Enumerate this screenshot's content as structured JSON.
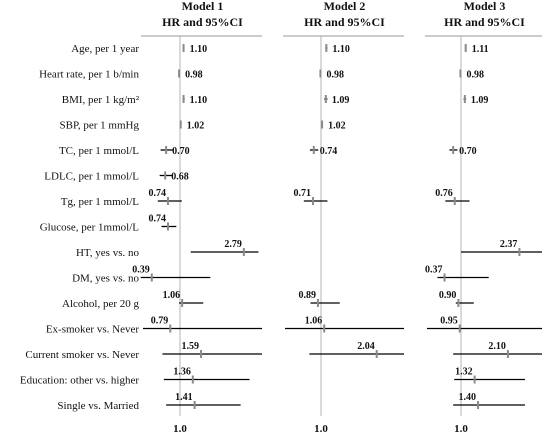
{
  "chart_data": {
    "type": "forest",
    "reference_value": 1.0,
    "panels": [
      {
        "title_line1": "Model 1",
        "title_line2": "HR and 95%CI",
        "xlim": [
          0.2,
          3.3
        ],
        "axis_tick_label": "1.0",
        "rows": [
          {
            "label": "Age, per 1 year",
            "hr": 1.1,
            "hr_text": "1.10",
            "ci": [
              1.08,
              1.12
            ]
          },
          {
            "label": "Heart rate, per 1 b/min",
            "hr": 0.98,
            "hr_text": "0.98",
            "ci": [
              0.97,
              0.99
            ]
          },
          {
            "label": "BMI, per 1 kg/m²",
            "hr": 1.1,
            "hr_text": "1.10",
            "ci": [
              1.07,
              1.13
            ]
          },
          {
            "label": "SBP, per 1 mmHg",
            "hr": 1.02,
            "hr_text": "1.02",
            "ci": [
              1.01,
              1.03
            ]
          },
          {
            "label": "TC, per 1 mmol/L",
            "hr": 0.7,
            "hr_text": "0.70",
            "ci": [
              0.58,
              0.85
            ]
          },
          {
            "label": "LDLC, per 1 mmol/L",
            "hr": 0.68,
            "hr_text": "0.68",
            "ci": [
              0.56,
              0.83
            ]
          },
          {
            "label": "Tg, per 1 mmol/L",
            "hr": 0.74,
            "hr_text": "0.74",
            "ci": [
              0.52,
              1.05
            ]
          },
          {
            "label": "Glucose, per 1mmol/L",
            "hr": 0.74,
            "hr_text": "0.74",
            "ci": [
              0.6,
              0.92
            ]
          },
          {
            "label": "HT, yes vs. no",
            "hr": 2.79,
            "hr_text": "2.79",
            "ci": [
              1.3,
              3.2
            ]
          },
          {
            "label": "DM, yes vs. no",
            "hr": 0.39,
            "hr_text": "0.39",
            "ci": [
              0.15,
              1.85
            ]
          },
          {
            "label": "Alcohol, per 20 g",
            "hr": 1.06,
            "hr_text": "1.06",
            "ci": [
              0.98,
              1.65
            ]
          },
          {
            "label": "Ex-smoker vs. Never",
            "hr": 0.79,
            "hr_text": "0.79",
            "ci": [
              0.2,
              3.3
            ]
          },
          {
            "label": "Current smoker vs. Never",
            "hr": 1.59,
            "hr_text": "1.59",
            "ci": [
              0.62,
              3.3
            ]
          },
          {
            "label": "Education: other vs. higher",
            "hr": 1.36,
            "hr_text": "1.36",
            "ci": [
              0.65,
              2.95
            ]
          },
          {
            "label": "Single vs. Married",
            "hr": 1.41,
            "hr_text": "1.41",
            "ci": [
              0.7,
              2.7
            ]
          }
        ]
      },
      {
        "title_line1": "Model 2",
        "title_line2": "HR and 95%CI",
        "xlim": [
          -0.3,
          2.55
        ],
        "axis_tick_label": "1.0",
        "rows": [
          {
            "label": "Age, per 1 year",
            "hr": 1.1,
            "hr_text": "1.10",
            "ci": [
              1.08,
              1.12
            ]
          },
          {
            "label": "Heart rate, per 1 b/min",
            "hr": 0.98,
            "hr_text": "0.98",
            "ci": [
              0.97,
              0.99
            ]
          },
          {
            "label": "BMI, per 1 kg/m²",
            "hr": 1.09,
            "hr_text": "1.09",
            "ci": [
              1.06,
              1.12
            ]
          },
          {
            "label": "SBP, per 1 mmHg",
            "hr": 1.02,
            "hr_text": "1.02",
            "ci": [
              1.01,
              1.03
            ]
          },
          {
            "label": "TC, per 1 mmol/L",
            "hr": 0.74,
            "hr_text": "0.74",
            "ci": [
              0.6,
              0.9
            ]
          },
          {
            "label": "Tg, per 1 mmol/L",
            "hr": 0.71,
            "hr_text": "0.71",
            "ci": [
              0.38,
              1.12
            ]
          },
          {
            "label": "Alcohol, per 20 g",
            "hr": 0.89,
            "hr_text": "0.89",
            "ci": [
              0.62,
              1.35
            ]
          },
          {
            "label": "Ex-smoker vs. Never",
            "hr": 1.06,
            "hr_text": "1.06",
            "ci": [
              -0.3,
              2.55
            ]
          },
          {
            "label": "Current smoker vs. Never",
            "hr": 2.04,
            "hr_text": "2.04",
            "ci": [
              0.58,
              2.55
            ]
          }
        ]
      },
      {
        "title_line1": "Model 3",
        "title_line2": "HR and 95%CI",
        "xlim": [
          -0.3,
          2.9
        ],
        "axis_tick_label": "1.0",
        "rows": [
          {
            "label": "Age, per 1 year",
            "hr": 1.11,
            "hr_text": "1.11",
            "ci": [
              1.09,
              1.13
            ]
          },
          {
            "label": "Heart rate, per 1 b/min",
            "hr": 0.98,
            "hr_text": "0.98",
            "ci": [
              0.97,
              0.99
            ]
          },
          {
            "label": "BMI, per 1 kg/m²",
            "hr": 1.09,
            "hr_text": "1.09",
            "ci": [
              1.06,
              1.12
            ]
          },
          {
            "label": "TC, per 1 mmol/L",
            "hr": 0.7,
            "hr_text": "0.70",
            "ci": [
              0.56,
              0.86
            ]
          },
          {
            "label": "Tg, per 1 mmol/L",
            "hr": 0.76,
            "hr_text": "0.76",
            "ci": [
              0.4,
              1.2
            ]
          },
          {
            "label": "HT, yes vs. no",
            "hr": 2.37,
            "hr_text": "2.37",
            "ci": [
              1.0,
              2.9
            ]
          },
          {
            "label": "DM, yes vs. no",
            "hr": 0.37,
            "hr_text": "0.37",
            "ci": [
              0.1,
              1.65
            ]
          },
          {
            "label": "Alcohol, per 20 g",
            "hr": 0.9,
            "hr_text": "0.90",
            "ci": [
              0.8,
              1.3
            ]
          },
          {
            "label": "Ex-smoker vs. Never",
            "hr": 0.95,
            "hr_text": "0.95",
            "ci": [
              -0.3,
              2.9
            ]
          },
          {
            "label": "Current smoker vs. Never",
            "hr": 2.1,
            "hr_text": "2.10",
            "ci": [
              0.7,
              2.9
            ]
          },
          {
            "label": "Education: other vs. higher",
            "hr": 1.32,
            "hr_text": "1.32",
            "ci": [
              0.74,
              2.5
            ]
          },
          {
            "label": "Single vs. Married",
            "hr": 1.4,
            "hr_text": "1.40",
            "ci": [
              0.7,
              2.5
            ]
          }
        ]
      }
    ],
    "colors": {
      "ci_line": "#000000",
      "point": "#8a8a8a",
      "reference_line": "#b5b5b5",
      "header_rule": "#9a9a9a"
    }
  }
}
